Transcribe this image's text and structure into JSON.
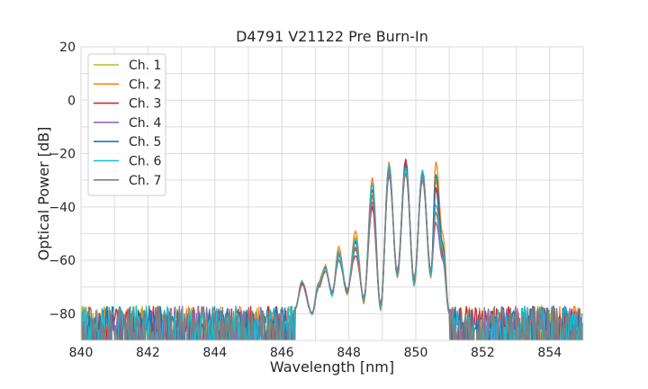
{
  "chart_data": {
    "type": "line",
    "title": "D4791 V21122 Pre Burn-In",
    "xlabel": "Wavelength [nm]",
    "ylabel": "Optical Power [dB]",
    "xlim": [
      840,
      855
    ],
    "ylim": [
      -90,
      20
    ],
    "xticks": [
      840,
      842,
      844,
      846,
      848,
      850,
      852,
      854
    ],
    "xtick_labels": [
      "840",
      "842",
      "844",
      "846",
      "848",
      "850",
      "852",
      "854"
    ],
    "yticks": [
      -80,
      -60,
      -40,
      -20,
      0,
      20
    ],
    "ytick_labels": [
      "−80",
      "−60",
      "−40",
      "−20",
      "0",
      "20"
    ],
    "grid": true,
    "legend_position": "upper-left",
    "noise_floor_approx": -82,
    "series": [
      {
        "name": "Ch. 1",
        "color": "#bcbd22",
        "x": [
          846.4,
          846.6,
          846.9,
          847.1,
          847.3,
          847.5,
          847.7,
          847.95,
          848.2,
          848.45,
          848.7,
          848.95,
          849.2,
          849.45,
          849.7,
          849.95,
          850.2,
          850.45,
          850.6,
          850.8,
          851.0
        ],
        "y": [
          -78,
          -68,
          -80,
          -69,
          -63,
          -72,
          -58,
          -72,
          -51,
          -75,
          -36,
          -78,
          -27,
          -66,
          -25,
          -68,
          -27,
          -65,
          -30,
          -55,
          -79
        ]
      },
      {
        "name": "Ch. 2",
        "color": "#ff7f0e",
        "x": [
          846.4,
          846.6,
          846.9,
          847.1,
          847.3,
          847.5,
          847.7,
          847.95,
          848.2,
          848.45,
          848.7,
          848.95,
          849.2,
          849.45,
          849.7,
          849.95,
          850.2,
          850.45,
          850.6,
          850.8,
          851.0
        ],
        "y": [
          -78,
          -68,
          -80,
          -68,
          -62,
          -73,
          -55,
          -73,
          -49,
          -76,
          -29,
          -79,
          -23,
          -67,
          -23,
          -70,
          -26,
          -67,
          -23,
          -50,
          -80
        ]
      },
      {
        "name": "Ch. 3",
        "color": "#d62728",
        "x": [
          846.4,
          846.6,
          846.9,
          847.1,
          847.3,
          847.5,
          847.7,
          847.95,
          848.2,
          848.45,
          848.7,
          848.95,
          849.2,
          849.45,
          849.7,
          849.95,
          850.2,
          850.45,
          850.6,
          850.8,
          851.0
        ],
        "y": [
          -78,
          -69,
          -80,
          -70,
          -64,
          -72,
          -60,
          -71,
          -58,
          -74,
          -40,
          -78,
          -27,
          -65,
          -22,
          -68,
          -27,
          -64,
          -33,
          -58,
          -79
        ]
      },
      {
        "name": "Ch. 4",
        "color": "#9467bd",
        "x": [
          846.4,
          846.6,
          846.9,
          847.1,
          847.3,
          847.5,
          847.7,
          847.95,
          848.2,
          848.45,
          848.7,
          848.95,
          849.2,
          849.45,
          849.7,
          849.95,
          850.2,
          850.45,
          850.6,
          850.8,
          851.0
        ],
        "y": [
          -78,
          -68,
          -80,
          -69,
          -63,
          -72,
          -58,
          -71,
          -55,
          -74,
          -38,
          -77,
          -28,
          -64,
          -24,
          -67,
          -30,
          -64,
          -46,
          -60,
          -80
        ]
      },
      {
        "name": "Ch. 5",
        "color": "#1f77b4",
        "x": [
          846.4,
          846.6,
          846.9,
          847.1,
          847.3,
          847.5,
          847.7,
          847.95,
          848.2,
          848.45,
          848.7,
          848.95,
          849.2,
          849.45,
          849.7,
          849.95,
          850.2,
          850.45,
          850.6,
          850.8,
          851.0
        ],
        "y": [
          -78,
          -68,
          -80,
          -69,
          -63,
          -73,
          -57,
          -72,
          -53,
          -75,
          -33,
          -78,
          -25,
          -66,
          -24,
          -69,
          -27,
          -65,
          -28,
          -54,
          -80
        ]
      },
      {
        "name": "Ch. 6",
        "color": "#17becf",
        "x": [
          846.4,
          846.6,
          846.9,
          847.1,
          847.3,
          847.5,
          847.7,
          847.95,
          848.2,
          848.45,
          848.7,
          848.95,
          849.2,
          849.45,
          849.7,
          849.95,
          850.2,
          850.45,
          850.6,
          850.8,
          851.0
        ],
        "y": [
          -78,
          -68,
          -80,
          -69,
          -63,
          -73,
          -57,
          -72,
          -52,
          -75,
          -31,
          -78,
          -24,
          -66,
          -25,
          -69,
          -26,
          -66,
          -39,
          -56,
          -80
        ]
      },
      {
        "name": "Ch. 7",
        "color": "#7f7f7f",
        "x": [
          846.4,
          846.6,
          846.9,
          847.1,
          847.3,
          847.5,
          847.7,
          847.95,
          848.2,
          848.45,
          848.7,
          848.95,
          849.2,
          849.45,
          849.7,
          849.95,
          850.2,
          850.45,
          850.6,
          850.8,
          851.0
        ],
        "y": [
          -78,
          -68,
          -80,
          -70,
          -64,
          -72,
          -60,
          -72,
          -56,
          -74,
          -35,
          -77,
          -26,
          -65,
          -27,
          -67,
          -28,
          -64,
          -42,
          -59,
          -80
        ]
      }
    ]
  }
}
